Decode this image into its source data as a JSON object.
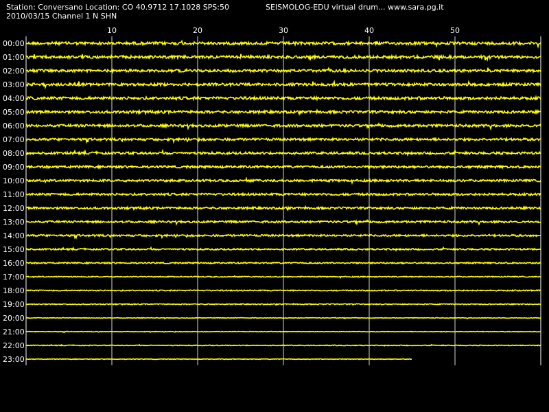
{
  "header": {
    "station_line": "Station: Conversano Location: CO 40.9712 17.1028 SPS:50",
    "program_line": "SEISMOLOG-EDU virtual drum... www.sara.pg.it",
    "date_line": "2010/03/15  Channel 1 N SHN"
  },
  "colors": {
    "background": "#000000",
    "trace": "#FFFF00",
    "grid": "#FFFFFF",
    "text": "#FFFFFF"
  },
  "chart_data": {
    "type": "line",
    "title": "",
    "xlabel": "",
    "ylabel": "",
    "x_unit": "minutes",
    "xlim": [
      0,
      60
    ],
    "x_ticks": [
      10,
      20,
      30,
      40,
      50
    ],
    "x_tick_labels": [
      "10",
      "20",
      "30",
      "40",
      "50"
    ],
    "grid": true,
    "rows": [
      "00:00",
      "01:00",
      "02:00",
      "03:00",
      "04:00",
      "05:00",
      "06:00",
      "07:00",
      "08:00",
      "09:00",
      "10:00",
      "11:00",
      "12:00",
      "13:00",
      "14:00",
      "15:00",
      "16:00",
      "17:00",
      "18:00",
      "19:00",
      "20:00",
      "21:00",
      "22:00",
      "23:00"
    ],
    "row_amplitude": [
      0.9,
      0.9,
      0.85,
      0.85,
      0.9,
      0.85,
      0.8,
      0.75,
      0.75,
      0.75,
      0.7,
      0.7,
      0.7,
      0.65,
      0.6,
      0.5,
      0.45,
      0.3,
      0.35,
      0.3,
      0.2,
      0.2,
      0.25,
      0.2
    ],
    "row_end_minute": [
      60,
      60,
      60,
      60,
      60,
      60,
      60,
      60,
      60,
      60,
      60,
      60,
      60,
      60,
      60,
      60,
      60,
      60,
      60,
      60,
      60,
      60,
      60,
      45
    ]
  }
}
